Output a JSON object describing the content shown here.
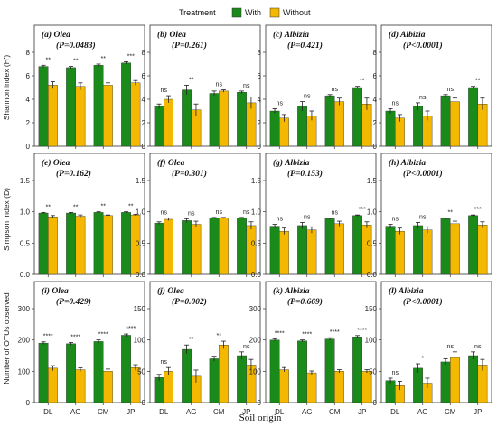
{
  "legend": {
    "title": "Treatment",
    "items": [
      {
        "label": "With",
        "color": "#1a8a1a"
      },
      {
        "label": "Without",
        "color": "#f5b800"
      }
    ]
  },
  "x_axis_title": "Soil origin",
  "y_axis_titles": [
    "Shannon index (H')",
    "Simpson index (D)",
    "Number of OTUs observed"
  ],
  "colors": {
    "with": "#1a8a1a",
    "without": "#f5b800",
    "error_bar": "#222222",
    "frame": "#333333"
  },
  "chart_data": [
    {
      "type": "bar",
      "label": "(a)",
      "species": "Olea",
      "pvalue": "(P=0.0483)",
      "row": 0,
      "col": 0,
      "categories": [
        "DL",
        "AG",
        "CM",
        "JP"
      ],
      "ylim": [
        0,
        8
      ],
      "yticks": [
        "0",
        "2",
        "4",
        "6",
        "8"
      ],
      "series": [
        {
          "name": "With",
          "values": [
            6.8,
            6.7,
            6.9,
            7.1
          ],
          "errors": [
            0.1,
            0.1,
            0.1,
            0.1
          ]
        },
        {
          "name": "Without",
          "values": [
            5.2,
            5.1,
            5.2,
            5.4
          ],
          "errors": [
            0.3,
            0.3,
            0.2,
            0.2
          ]
        }
      ],
      "significance": [
        "**",
        "**",
        "**",
        "***"
      ]
    },
    {
      "type": "bar",
      "label": "(b)",
      "species": "Olea",
      "pvalue": "(P=0.261)",
      "row": 0,
      "col": 1,
      "categories": [
        "DL",
        "AG",
        "CM",
        "JP"
      ],
      "ylim": [
        0,
        8
      ],
      "yticks": [
        "0",
        "2",
        "4",
        "6",
        "8"
      ],
      "series": [
        {
          "name": "With",
          "values": [
            3.4,
            4.8,
            4.5,
            4.6
          ],
          "errors": [
            0.2,
            0.4,
            0.2,
            0.1
          ]
        },
        {
          "name": "Without",
          "values": [
            4.0,
            3.1,
            4.7,
            3.7
          ],
          "errors": [
            0.3,
            0.5,
            0.1,
            0.5
          ]
        }
      ],
      "significance": [
        "ns",
        "**",
        "ns",
        "ns"
      ]
    },
    {
      "type": "bar",
      "label": "(c)",
      "species": "Albizia",
      "pvalue": "(P=0.421)",
      "row": 0,
      "col": 2,
      "categories": [
        "DL",
        "AG",
        "CM",
        "JP"
      ],
      "ylim": [
        0,
        8
      ],
      "yticks": [
        "0",
        "2",
        "4",
        "6",
        "8"
      ],
      "series": [
        {
          "name": "With",
          "values": [
            3.0,
            3.4,
            4.3,
            5.0
          ],
          "errors": [
            0.2,
            0.4,
            0.1,
            0.1
          ]
        },
        {
          "name": "Without",
          "values": [
            2.4,
            2.6,
            3.8,
            3.6
          ],
          "errors": [
            0.3,
            0.4,
            0.3,
            0.5
          ]
        }
      ],
      "significance": [
        "ns",
        "ns",
        "ns",
        "**"
      ]
    },
    {
      "type": "bar",
      "label": "(d)",
      "species": "Albizia",
      "pvalue": "(P<0.0001)",
      "row": 0,
      "col": 3,
      "categories": [
        "DL",
        "AG",
        "CM",
        "JP"
      ],
      "ylim": [
        0,
        8
      ],
      "yticks": [
        "0",
        "2",
        "4",
        "6",
        "8"
      ],
      "series": [
        {
          "name": "With",
          "values": [
            3.0,
            3.4,
            4.3,
            5.0
          ],
          "errors": [
            0.2,
            0.3,
            0.1,
            0.1
          ]
        },
        {
          "name": "Without",
          "values": [
            2.4,
            2.6,
            3.8,
            3.6
          ],
          "errors": [
            0.3,
            0.4,
            0.3,
            0.5
          ]
        }
      ],
      "significance": [
        "ns",
        "ns",
        "ns",
        "**"
      ]
    },
    {
      "type": "bar",
      "label": "(e)",
      "species": "Olea",
      "pvalue": "(P=0.162)",
      "row": 1,
      "col": 0,
      "categories": [
        "DL",
        "AG",
        "CM",
        "JP"
      ],
      "ylim": [
        0,
        1.5
      ],
      "yticks": [
        "0.0",
        "0.5",
        "1.0",
        "1.5"
      ],
      "series": [
        {
          "name": "With",
          "values": [
            0.98,
            0.98,
            0.99,
            0.99
          ],
          "errors": [
            0.01,
            0.01,
            0.01,
            0.01
          ]
        },
        {
          "name": "Without",
          "values": [
            0.92,
            0.93,
            0.94,
            0.95
          ],
          "errors": [
            0.02,
            0.02,
            0.01,
            0.01
          ]
        }
      ],
      "significance": [
        "**",
        "**",
        "**",
        "**"
      ]
    },
    {
      "type": "bar",
      "label": "(f)",
      "species": "Olea",
      "pvalue": "(P=0.301)",
      "row": 1,
      "col": 1,
      "categories": [
        "DL",
        "AG",
        "CM",
        "JP"
      ],
      "ylim": [
        0,
        1.5
      ],
      "yticks": [
        "0.0",
        "0.5",
        "1.0",
        "1.5"
      ],
      "series": [
        {
          "name": "With",
          "values": [
            0.82,
            0.86,
            0.9,
            0.9
          ],
          "errors": [
            0.02,
            0.03,
            0.01,
            0.01
          ]
        },
        {
          "name": "Without",
          "values": [
            0.88,
            0.8,
            0.9,
            0.78
          ],
          "errors": [
            0.02,
            0.05,
            0.01,
            0.06
          ]
        }
      ],
      "significance": [
        "ns",
        "ns",
        "ns",
        "ns"
      ]
    },
    {
      "type": "bar",
      "label": "(g)",
      "species": "Albizia",
      "pvalue": "(P=0.153)",
      "row": 1,
      "col": 2,
      "categories": [
        "DL",
        "AG",
        "CM",
        "JP"
      ],
      "ylim": [
        0,
        1.5
      ],
      "yticks": [
        "0.0",
        "0.5",
        "1.0",
        "1.5"
      ],
      "series": [
        {
          "name": "With",
          "values": [
            0.77,
            0.78,
            0.89,
            0.94
          ],
          "errors": [
            0.03,
            0.05,
            0.01,
            0.01
          ]
        },
        {
          "name": "Without",
          "values": [
            0.69,
            0.71,
            0.81,
            0.79
          ],
          "errors": [
            0.05,
            0.05,
            0.04,
            0.05
          ]
        }
      ],
      "significance": [
        "ns",
        "ns",
        "ns",
        "***"
      ]
    },
    {
      "type": "bar",
      "label": "(h)",
      "species": "Albizia",
      "pvalue": "(P<0.0001)",
      "row": 1,
      "col": 3,
      "categories": [
        "DL",
        "AG",
        "CM",
        "JP"
      ],
      "ylim": [
        0,
        1.5
      ],
      "yticks": [
        "0.0",
        "0.5",
        "1.0",
        "1.5"
      ],
      "series": [
        {
          "name": "With",
          "values": [
            0.77,
            0.78,
            0.89,
            0.94
          ],
          "errors": [
            0.03,
            0.05,
            0.01,
            0.01
          ]
        },
        {
          "name": "Without",
          "values": [
            0.69,
            0.71,
            0.81,
            0.79
          ],
          "errors": [
            0.05,
            0.05,
            0.04,
            0.05
          ]
        }
      ],
      "significance": [
        "ns",
        "ns",
        "**",
        "***"
      ]
    },
    {
      "type": "bar",
      "label": "(i)",
      "species": "Olea",
      "pvalue": "(P=0.429)",
      "row": 2,
      "col": 0,
      "categories": [
        "DL",
        "AG",
        "CM",
        "JP"
      ],
      "ylim": [
        0,
        300
      ],
      "yticks": [
        "0",
        "100",
        "200",
        "300"
      ],
      "series": [
        {
          "name": "With",
          "values": [
            190,
            188,
            195,
            215
          ],
          "errors": [
            4,
            4,
            5,
            4
          ]
        },
        {
          "name": "Without",
          "values": [
            110,
            105,
            100,
            112
          ],
          "errors": [
            8,
            6,
            7,
            9
          ]
        }
      ],
      "significance": [
        "****",
        "****",
        "****",
        "****"
      ]
    },
    {
      "type": "bar",
      "label": "(j)",
      "species": "Olea",
      "pvalue": "(P=0.002)",
      "row": 2,
      "col": 1,
      "categories": [
        "DL",
        "AG",
        "CM",
        "JP"
      ],
      "ylim": [
        0,
        150
      ],
      "yticks": [
        "0",
        "50",
        "100",
        "150"
      ],
      "series": [
        {
          "name": "With",
          "values": [
            40,
            85,
            70,
            75
          ],
          "errors": [
            5,
            7,
            4,
            6
          ]
        },
        {
          "name": "Without",
          "values": [
            50,
            42,
            92,
            60
          ],
          "errors": [
            6,
            10,
            6,
            9
          ]
        }
      ],
      "significance": [
        "ns",
        "**",
        "**",
        "ns"
      ]
    },
    {
      "type": "bar",
      "label": "(k)",
      "species": "Albizia",
      "pvalue": "(P=0.669)",
      "row": 2,
      "col": 2,
      "categories": [
        "DL",
        "AG",
        "CM",
        "JP"
      ],
      "ylim": [
        0,
        300
      ],
      "yticks": [
        "0",
        "100",
        "200",
        "300"
      ],
      "series": [
        {
          "name": "With",
          "values": [
            200,
            197,
            203,
            210
          ],
          "errors": [
            4,
            3,
            4,
            4
          ]
        },
        {
          "name": "Without",
          "values": [
            105,
            95,
            100,
            100
          ],
          "errors": [
            7,
            6,
            5,
            5
          ]
        }
      ],
      "significance": [
        "****",
        "****",
        "****",
        "****"
      ]
    },
    {
      "type": "bar",
      "label": "(l)",
      "species": "Albizia",
      "pvalue": "(P<0.0001)",
      "row": 2,
      "col": 3,
      "categories": [
        "DL",
        "AG",
        "CM",
        "JP"
      ],
      "ylim": [
        0,
        150
      ],
      "yticks": [
        "0",
        "50",
        "100",
        "150"
      ],
      "series": [
        {
          "name": "With",
          "values": [
            35,
            55,
            65,
            75
          ],
          "errors": [
            4,
            7,
            5,
            6
          ]
        },
        {
          "name": "Without",
          "values": [
            27,
            31,
            72,
            60
          ],
          "errors": [
            7,
            8,
            9,
            9
          ]
        }
      ],
      "significance": [
        "ns",
        "*",
        "ns",
        "ns"
      ]
    }
  ]
}
